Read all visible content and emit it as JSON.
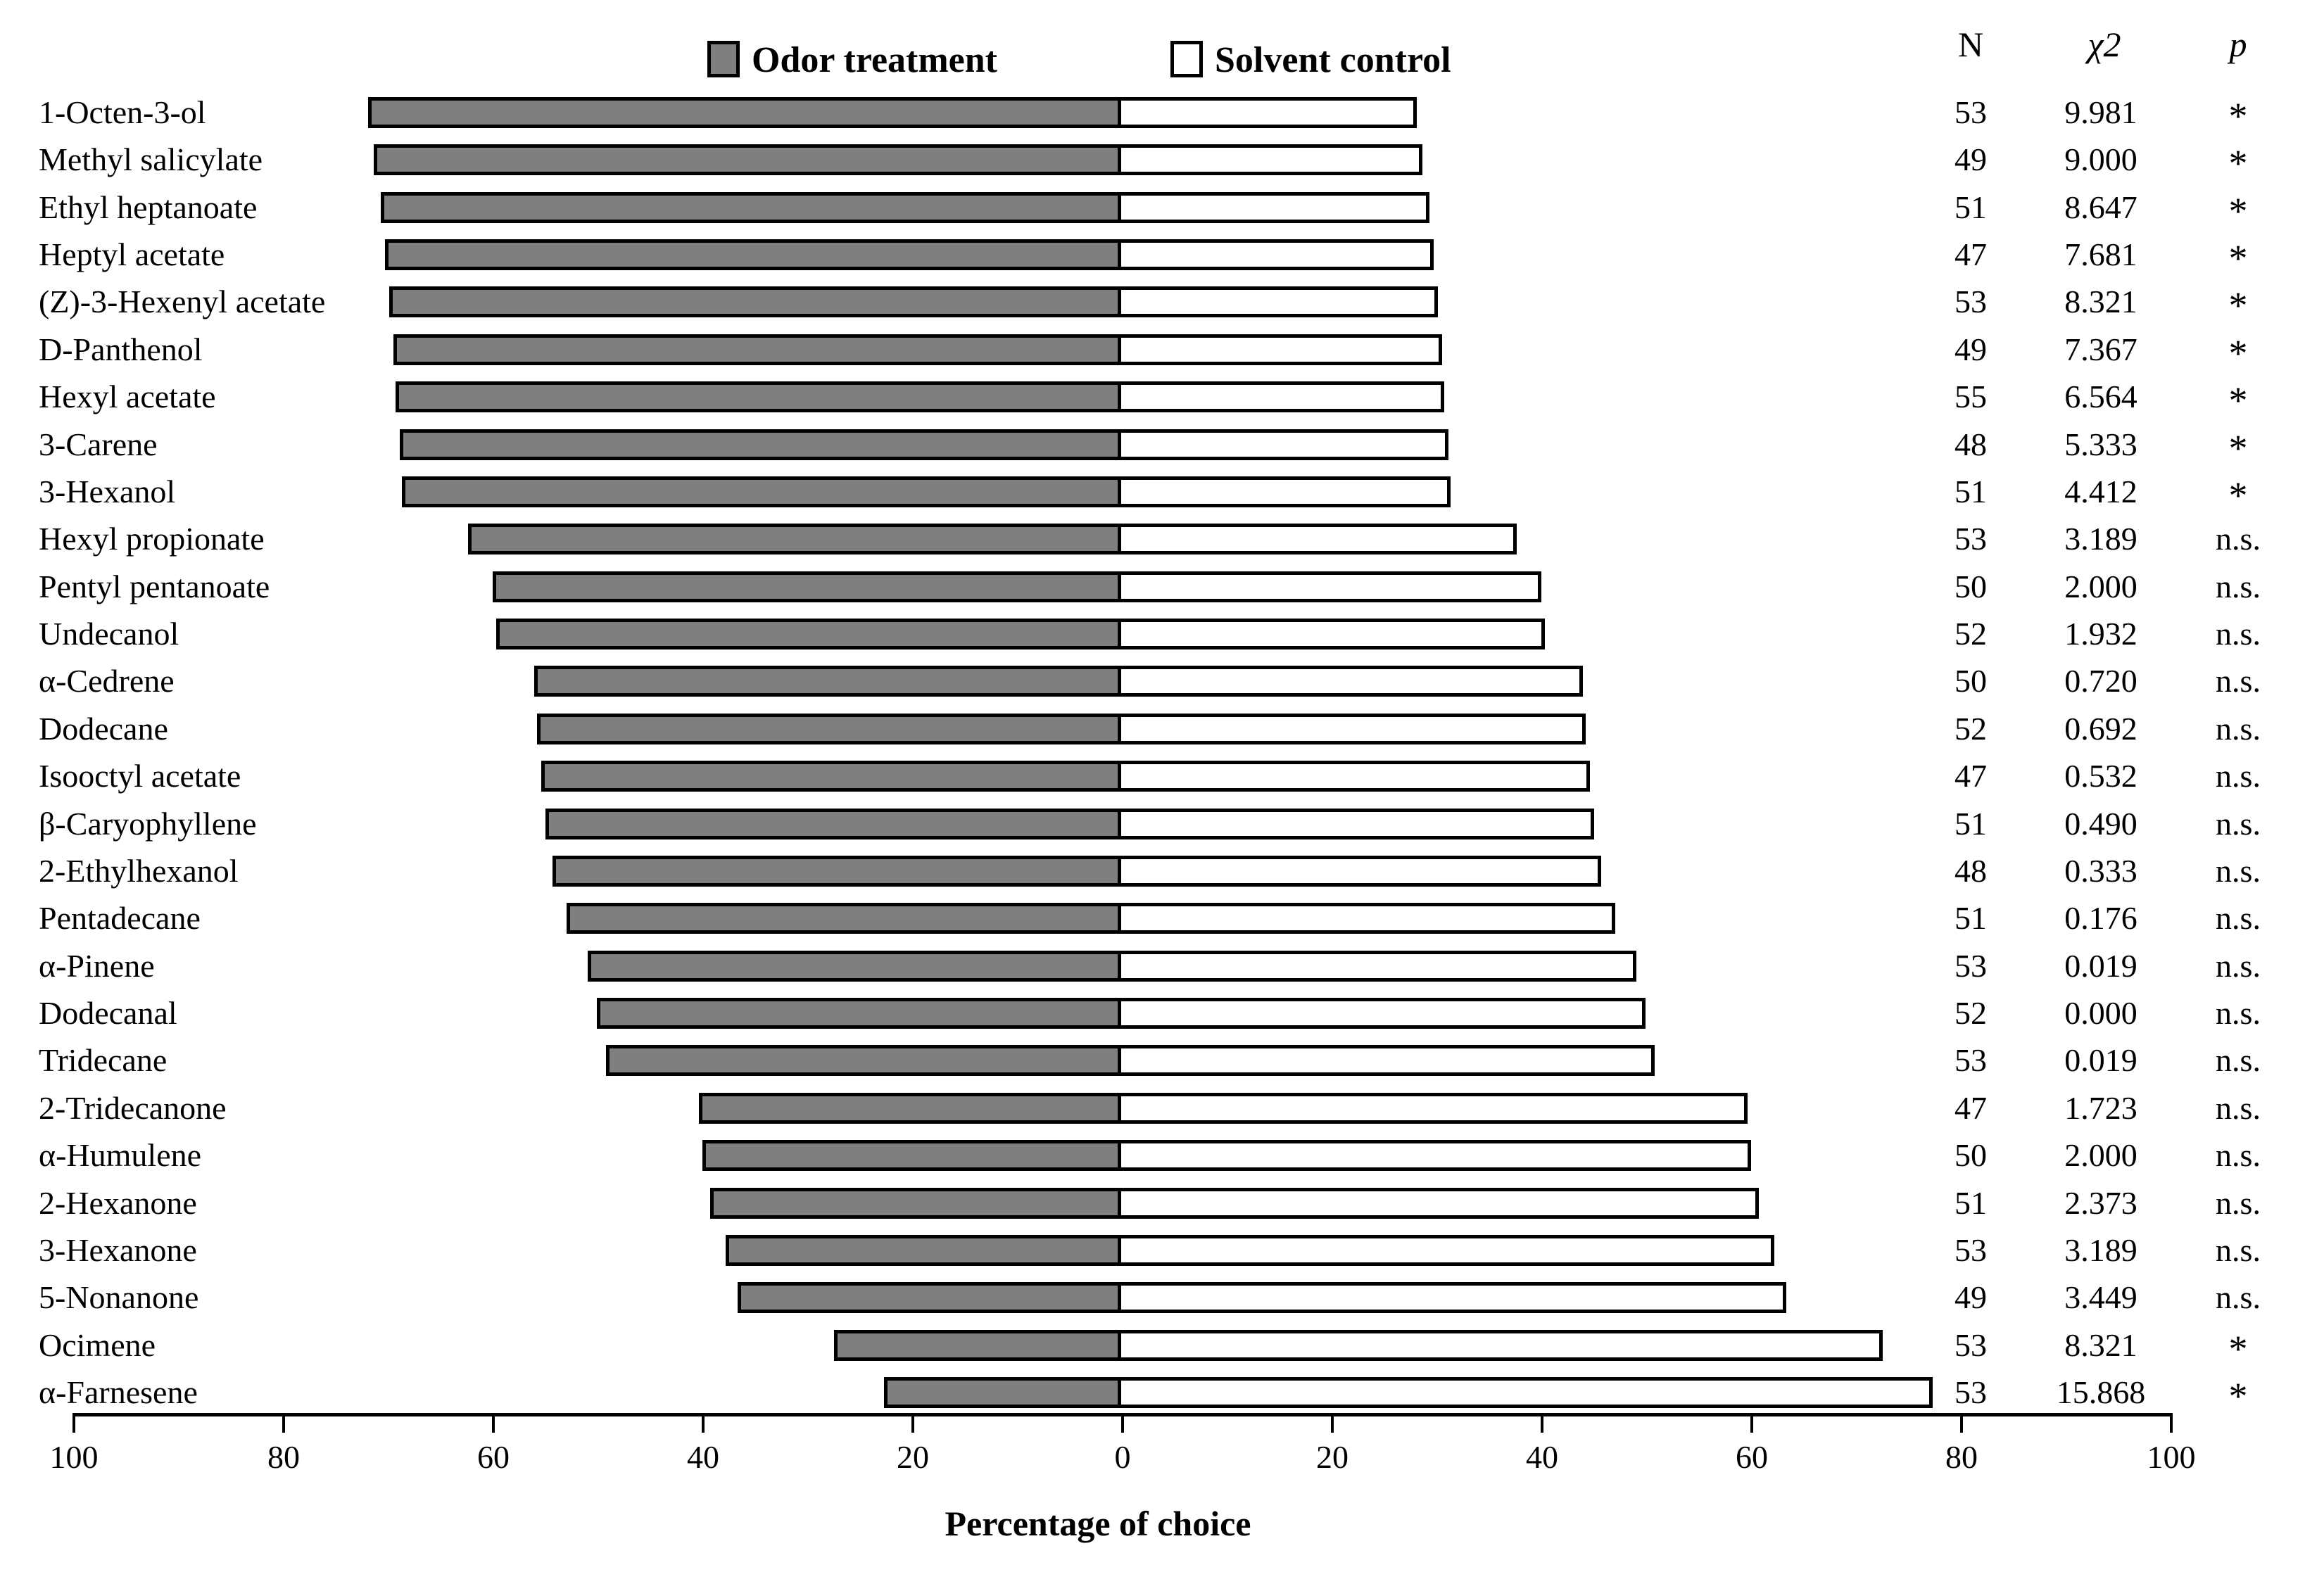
{
  "legend": {
    "odor_label": "Odor treatment",
    "solvent_label": "Solvent control"
  },
  "stats_header": {
    "n": "N",
    "chi2": "χ2",
    "p": "p"
  },
  "axis": {
    "tick_labels": [
      "100",
      "80",
      "60",
      "40",
      "20",
      "0",
      "20",
      "40",
      "60",
      "80",
      "100"
    ],
    "xlabel": "Percentage of choice"
  },
  "colors": {
    "odor_fill": "#7f7f7f",
    "solvent_fill": "#ffffff",
    "outline": "#000000"
  },
  "chart_data": {
    "type": "bar",
    "orientation": "horizontal-diverging",
    "title": "",
    "xlabel": "Percentage of choice",
    "x_ticks": [
      100,
      80,
      60,
      40,
      20,
      0,
      20,
      40,
      60,
      80,
      100
    ],
    "axis_range": [
      -100,
      100
    ],
    "grid": false,
    "legend_position": "top",
    "series_names": [
      "Odor treatment",
      "Solvent control"
    ],
    "rows": [
      {
        "label": "1-Octen-3-ol",
        "odor_pct": 71.8,
        "solvent_pct": 28.2,
        "n": "53",
        "chi2": "9.981",
        "p": "*"
      },
      {
        "label": "Methyl salicylate",
        "odor_pct": 71.3,
        "solvent_pct": 28.7,
        "n": "49",
        "chi2": "9.000",
        "p": "*"
      },
      {
        "label": "Ethyl heptanoate",
        "odor_pct": 70.6,
        "solvent_pct": 29.4,
        "n": "51",
        "chi2": "8.647",
        "p": "*"
      },
      {
        "label": "Heptyl acetate",
        "odor_pct": 70.2,
        "solvent_pct": 29.8,
        "n": "47",
        "chi2": "7.681",
        "p": "*"
      },
      {
        "label": "(Z)-3-Hexenyl acetate",
        "odor_pct": 69.8,
        "solvent_pct": 30.2,
        "n": "53",
        "chi2": "8.321",
        "p": "*"
      },
      {
        "label": "D-Panthenol",
        "odor_pct": 69.4,
        "solvent_pct": 30.6,
        "n": "49",
        "chi2": "7.367",
        "p": "*"
      },
      {
        "label": "Hexyl acetate",
        "odor_pct": 69.2,
        "solvent_pct": 30.8,
        "n": "55",
        "chi2": "6.564",
        "p": "*"
      },
      {
        "label": "3-Carene",
        "odor_pct": 68.8,
        "solvent_pct": 31.2,
        "n": "48",
        "chi2": "5.333",
        "p": "*"
      },
      {
        "label": "3-Hexanol",
        "odor_pct": 68.6,
        "solvent_pct": 31.4,
        "n": "51",
        "chi2": "4.412",
        "p": "*"
      },
      {
        "label": "Hexyl propionate",
        "odor_pct": 62.3,
        "solvent_pct": 37.7,
        "n": "53",
        "chi2": "3.189",
        "p": "n.s."
      },
      {
        "label": "Pentyl pentanoate",
        "odor_pct": 59.9,
        "solvent_pct": 40.1,
        "n": "50",
        "chi2": "2.000",
        "p": "n.s."
      },
      {
        "label": "Undecanol",
        "odor_pct": 59.6,
        "solvent_pct": 40.4,
        "n": "52",
        "chi2": "1.932",
        "p": "n.s."
      },
      {
        "label": "α-Cedrene",
        "odor_pct": 56.0,
        "solvent_pct": 44.0,
        "n": "50",
        "chi2": "0.720",
        "p": "n.s."
      },
      {
        "label": "Dodecane",
        "odor_pct": 55.7,
        "solvent_pct": 44.3,
        "n": "52",
        "chi2": "0.692",
        "p": "n.s."
      },
      {
        "label": "Isooctyl acetate",
        "odor_pct": 55.3,
        "solvent_pct": 44.7,
        "n": "47",
        "chi2": "0.532",
        "p": "n.s."
      },
      {
        "label": "β-Caryophyllene",
        "odor_pct": 54.9,
        "solvent_pct": 45.1,
        "n": "51",
        "chi2": "0.490",
        "p": "n.s."
      },
      {
        "label": "2-Ethylhexanol",
        "odor_pct": 54.2,
        "solvent_pct": 45.8,
        "n": "48",
        "chi2": "0.333",
        "p": "n.s."
      },
      {
        "label": "Pentadecane",
        "odor_pct": 52.9,
        "solvent_pct": 47.1,
        "n": "51",
        "chi2": "0.176",
        "p": "n.s."
      },
      {
        "label": "α-Pinene",
        "odor_pct": 50.9,
        "solvent_pct": 49.1,
        "n": "53",
        "chi2": "0.019",
        "p": "n.s."
      },
      {
        "label": "Dodecanal",
        "odor_pct": 50.0,
        "solvent_pct": 50.0,
        "n": "52",
        "chi2": "0.000",
        "p": "n.s."
      },
      {
        "label": "Tridecane",
        "odor_pct": 49.1,
        "solvent_pct": 50.9,
        "n": "53",
        "chi2": "0.019",
        "p": "n.s."
      },
      {
        "label": "2-Tridecanone",
        "odor_pct": 40.3,
        "solvent_pct": 59.7,
        "n": "47",
        "chi2": "1.723",
        "p": "n.s."
      },
      {
        "label": "α-Humulene",
        "odor_pct": 39.9,
        "solvent_pct": 60.1,
        "n": "50",
        "chi2": "2.000",
        "p": "n.s."
      },
      {
        "label": "2-Hexanone",
        "odor_pct": 39.2,
        "solvent_pct": 60.8,
        "n": "51",
        "chi2": "2.373",
        "p": "n.s."
      },
      {
        "label": "3-Hexanone",
        "odor_pct": 37.7,
        "solvent_pct": 62.3,
        "n": "53",
        "chi2": "3.189",
        "p": "n.s."
      },
      {
        "label": "5-Nonanone",
        "odor_pct": 36.6,
        "solvent_pct": 63.4,
        "n": "49",
        "chi2": "3.449",
        "p": "n.s."
      },
      {
        "label": "Ocimene",
        "odor_pct": 27.4,
        "solvent_pct": 72.6,
        "n": "53",
        "chi2": "8.321",
        "p": "*"
      },
      {
        "label": "α-Farnesene",
        "odor_pct": 22.6,
        "solvent_pct": 77.4,
        "n": "53",
        "chi2": "15.868",
        "p": "*"
      }
    ]
  }
}
